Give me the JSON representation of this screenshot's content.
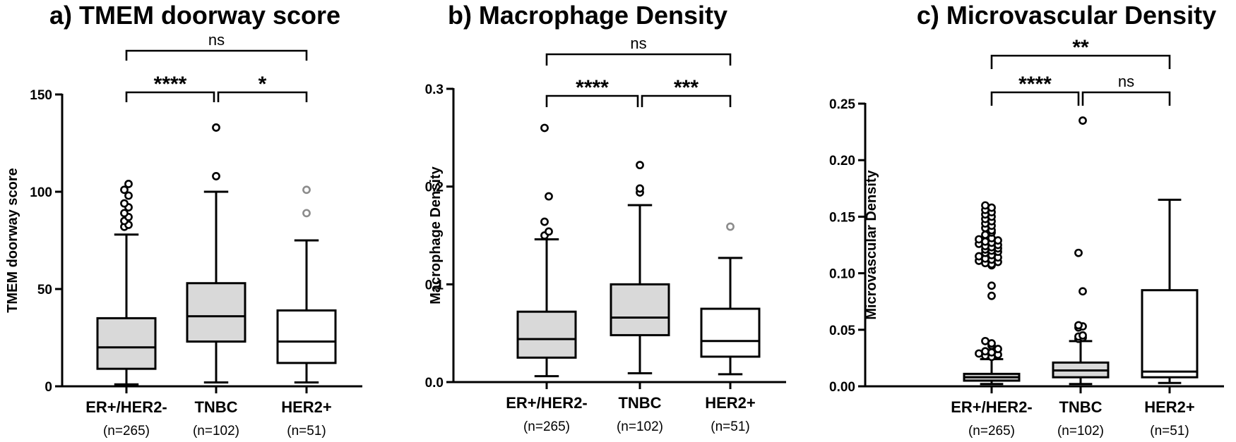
{
  "colors": {
    "ink": "#000000",
    "fill_gray": "#d9d9d9",
    "fill_white": "#ffffff",
    "outlier_gray": "#8c8c8c"
  },
  "chart_data": [
    {
      "type": "box",
      "title": "a) TMEM doorway score",
      "ylabel": "TMEM doorway score",
      "ylim": [
        0,
        150
      ],
      "yticks": [
        0,
        50,
        100,
        150
      ],
      "ytick_labels": [
        "0",
        "50",
        "100",
        "150"
      ],
      "categories": [
        "ER+/HER2-",
        "TNBC",
        "HER2+"
      ],
      "n_labels": [
        "(n=265)",
        "(n=102)",
        "(n=51)"
      ],
      "boxes": [
        {
          "whisker_low": 1,
          "q1": 9,
          "median": 20,
          "q3": 35,
          "whisker_high": 78,
          "fill": "gray",
          "outlier_color": "black",
          "outliers": [
            82,
            83,
            85,
            87,
            89,
            92,
            94,
            98,
            101,
            104
          ]
        },
        {
          "whisker_low": 2,
          "q1": 23,
          "median": 36,
          "q3": 53,
          "whisker_high": 100,
          "fill": "gray",
          "outlier_color": "black",
          "outliers": [
            108,
            133
          ]
        },
        {
          "whisker_low": 2,
          "q1": 12,
          "median": 23,
          "q3": 39,
          "whisker_high": 75,
          "fill": "white",
          "outlier_color": "gray",
          "outliers": [
            89,
            101
          ]
        }
      ],
      "comparisons": [
        {
          "from": 0,
          "to": 2,
          "label": "ns",
          "level": 2
        },
        {
          "from": 0,
          "to": 1,
          "label": "****",
          "level": 1
        },
        {
          "from": 1,
          "to": 2,
          "label": "*",
          "level": 1
        }
      ]
    },
    {
      "type": "box",
      "title": "b) Macrophage Density",
      "ylabel": "Macrophage Density",
      "ylim": [
        0,
        0.3
      ],
      "yticks": [
        0,
        0.1,
        0.2,
        0.3
      ],
      "ytick_labels": [
        "0.0",
        "0.1",
        "0.2",
        "0.3"
      ],
      "categories": [
        "ER+/HER2-",
        "TNBC",
        "HER2+"
      ],
      "n_labels": [
        "(n=265)",
        "(n=102)",
        "(n=51)"
      ],
      "boxes": [
        {
          "whisker_low": 0.006,
          "q1": 0.025,
          "median": 0.044,
          "q3": 0.072,
          "whisker_high": 0.146,
          "fill": "gray",
          "outlier_color": "black",
          "outliers": [
            0.15,
            0.154,
            0.164,
            0.19,
            0.26
          ]
        },
        {
          "whisker_low": 0.009,
          "q1": 0.048,
          "median": 0.066,
          "q3": 0.1,
          "whisker_high": 0.181,
          "fill": "gray",
          "outlier_color": "black",
          "outliers": [
            0.194,
            0.198,
            0.222
          ]
        },
        {
          "whisker_low": 0.008,
          "q1": 0.026,
          "median": 0.042,
          "q3": 0.075,
          "whisker_high": 0.127,
          "fill": "white",
          "outlier_color": "gray",
          "outliers": [
            0.159
          ]
        }
      ],
      "comparisons": [
        {
          "from": 0,
          "to": 2,
          "label": "ns",
          "level": 2
        },
        {
          "from": 0,
          "to": 1,
          "label": "****",
          "level": 1
        },
        {
          "from": 1,
          "to": 2,
          "label": "***",
          "level": 1
        }
      ]
    },
    {
      "type": "box",
      "title": "c) Microvascular Density",
      "ylabel": "Microvascular Density",
      "ylim": [
        0,
        0.25
      ],
      "yticks": [
        0,
        0.05,
        0.1,
        0.15,
        0.2,
        0.25
      ],
      "ytick_labels": [
        "0.00",
        "0.05",
        "0.10",
        "0.15",
        "0.20",
        "0.25"
      ],
      "categories": [
        "ER+/HER2-",
        "TNBC",
        "HER2+"
      ],
      "n_labels": [
        "(n=265)",
        "(n=102)",
        "(n=51)"
      ],
      "boxes": [
        {
          "whisker_low": 0.002,
          "q1": 0.005,
          "median": 0.008,
          "q3": 0.011,
          "whisker_high": 0.024,
          "fill": "gray",
          "outlier_color": "black",
          "outliers": [
            0.026,
            0.027,
            0.028,
            0.029,
            0.03,
            0.031,
            0.033,
            0.036,
            0.038,
            0.04,
            0.08,
            0.089,
            0.107,
            0.108,
            0.109,
            0.11,
            0.111,
            0.112,
            0.113,
            0.114,
            0.115,
            0.116,
            0.118,
            0.119,
            0.12,
            0.121,
            0.122,
            0.123,
            0.124,
            0.125,
            0.126,
            0.127,
            0.128,
            0.129,
            0.13,
            0.131,
            0.134,
            0.136,
            0.138,
            0.14,
            0.142,
            0.144,
            0.146,
            0.148,
            0.15,
            0.152,
            0.154,
            0.156,
            0.158,
            0.16
          ]
        },
        {
          "whisker_low": 0.002,
          "q1": 0.008,
          "median": 0.014,
          "q3": 0.021,
          "whisker_high": 0.04,
          "fill": "gray",
          "outlier_color": "black",
          "outliers": [
            0.042,
            0.043,
            0.044,
            0.045,
            0.052,
            0.053,
            0.054,
            0.084,
            0.118,
            0.235
          ]
        },
        {
          "whisker_low": 0.003,
          "q1": 0.008,
          "median": 0.013,
          "q3": 0.085,
          "whisker_high": 0.165,
          "fill": "white",
          "outlier_color": "gray",
          "outliers": []
        }
      ],
      "comparisons": [
        {
          "from": 0,
          "to": 2,
          "label": "**",
          "level": 2
        },
        {
          "from": 0,
          "to": 1,
          "label": "****",
          "level": 1
        },
        {
          "from": 1,
          "to": 2,
          "label": "ns",
          "level": 1
        }
      ]
    }
  ]
}
